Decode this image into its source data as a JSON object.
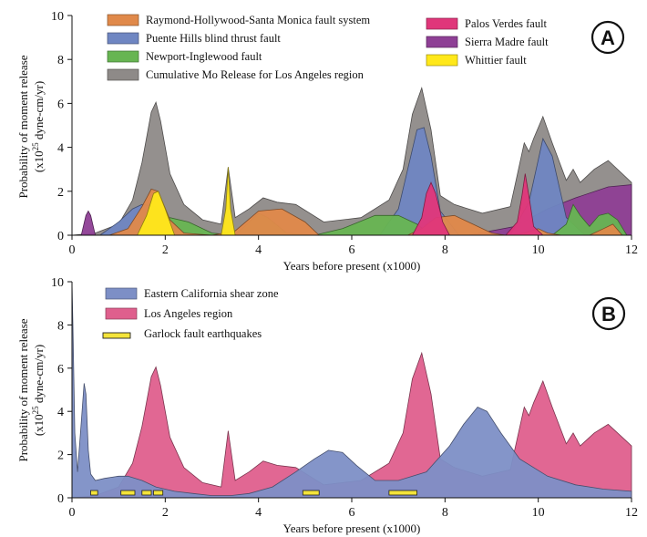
{
  "panels": {
    "A": {
      "letter": "A",
      "ylabel": {
        "line1": "Probability of moment release",
        "base": "(x10",
        "exp": "25",
        "rest": " dyne-cm/yr)"
      }
    },
    "B": {
      "letter": "B",
      "ylabel": {
        "line1": "Probability of moment release",
        "base": "(x10",
        "exp": "25",
        "rest": " dyne-cm/yr)"
      }
    }
  },
  "xlabel": "Years before present (x1000)",
  "chart_data": [
    {
      "type": "area",
      "panel": "A",
      "xlabel": "Years before present (x1000)",
      "xlim": [
        0,
        12
      ],
      "ylim": [
        0,
        10
      ],
      "xticks": [
        0,
        2,
        4,
        6,
        8,
        10,
        12
      ],
      "yticks": [
        0,
        2,
        4,
        6,
        8,
        10
      ],
      "legend": [
        {
          "label": "Raymond-Hollywood-Santa Monica fault system",
          "color": "#e0894a"
        },
        {
          "label": "Puente Hills blind thrust fault",
          "color": "#6f86c2"
        },
        {
          "label": "Newport-Inglewood fault",
          "color": "#67b552"
        },
        {
          "label": "Cumulative Mo Release for Los Angeles region",
          "color": "#8e8a88"
        },
        {
          "label": "Palos Verdes fault",
          "color": "#e0367a"
        },
        {
          "label": "Sierra Madre fault",
          "color": "#8e3f95"
        },
        {
          "label": "Whittier fault",
          "color": "#ffe81a"
        }
      ],
      "series": [
        {
          "name": "Cumulative Mo Release for Los Angeles region",
          "color": "#8e8a88",
          "x": [
            0,
            0.5,
            1.0,
            1.3,
            1.5,
            1.7,
            1.8,
            1.9,
            2.1,
            2.4,
            2.8,
            3.2,
            3.35,
            3.5,
            3.8,
            4.1,
            4.4,
            4.8,
            5.4,
            6.2,
            6.8,
            7.1,
            7.3,
            7.5,
            7.7,
            7.9,
            8.2,
            8.8,
            9.4,
            9.7,
            9.8,
            9.9,
            10.1,
            10.3,
            10.6,
            10.75,
            10.9,
            11.2,
            11.5,
            11.8,
            12
          ],
          "y": [
            0,
            0.1,
            0.5,
            1.6,
            3.3,
            5.6,
            6.05,
            5.2,
            2.8,
            1.4,
            0.7,
            0.5,
            3.1,
            0.8,
            1.2,
            1.7,
            1.5,
            1.4,
            0.6,
            0.8,
            1.6,
            3.0,
            5.5,
            6.7,
            4.8,
            1.8,
            1.4,
            1.0,
            1.3,
            4.2,
            3.8,
            4.4,
            5.4,
            4.2,
            2.5,
            3.0,
            2.4,
            3.0,
            3.4,
            2.8,
            2.4
          ]
        },
        {
          "name": "Sierra Madre fault",
          "color": "#8e3f95",
          "x": [
            0.2,
            0.3,
            0.35,
            0.4,
            0.5,
            8.5,
            9.5,
            10.2,
            10.8,
            11.5,
            12
          ],
          "y": [
            0,
            0.9,
            1.1,
            0.9,
            0,
            0,
            0.4,
            1.2,
            1.7,
            2.2,
            2.3
          ]
        },
        {
          "name": "Puente Hills blind thrust fault",
          "color": "#6f86c2",
          "x": [
            0.6,
            1.0,
            1.3,
            1.5,
            1.8,
            2.1,
            2.5,
            6.6,
            7.0,
            7.2,
            7.4,
            7.55,
            7.7,
            7.9,
            8.3,
            9.4,
            9.8,
            10.1,
            10.3,
            10.6,
            11.0
          ],
          "y": [
            0,
            0.6,
            1.2,
            1.4,
            1.3,
            0.6,
            0,
            0,
            1.2,
            3.0,
            4.8,
            4.9,
            3.6,
            1.1,
            0,
            0,
            1.5,
            4.4,
            3.6,
            0.8,
            0
          ]
        },
        {
          "name": "Newport-Inglewood fault",
          "color": "#67b552",
          "x": [
            1.8,
            2.1,
            2.5,
            3.0,
            3.5,
            3.8,
            4.0,
            4.2,
            4.6,
            5.2,
            5.8,
            6.5,
            7.0,
            7.4,
            7.7,
            10.3,
            10.6,
            10.75,
            10.9,
            11.1,
            11.3,
            11.5,
            11.7,
            11.9
          ],
          "y": [
            0.3,
            0.8,
            0.6,
            0.1,
            0,
            0.6,
            1.0,
            0.8,
            0.1,
            0,
            0.3,
            0.9,
            0.9,
            0.5,
            0,
            0,
            0.5,
            1.4,
            0.9,
            0.4,
            0.9,
            1.0,
            0.7,
            0
          ]
        },
        {
          "name": "Raymond-Hollywood-Santa Monica fault system",
          "color": "#e0894a",
          "x": [
            0.8,
            1.2,
            1.5,
            1.7,
            1.85,
            2.1,
            2.4,
            3.0,
            3.5,
            4.0,
            4.5,
            5.0,
            5.3,
            7.2,
            7.5,
            7.8,
            8.2,
            8.6,
            9.0,
            9.3,
            9.7,
            10.0,
            10.2,
            10.5,
            10.8,
            11.1,
            11.4,
            11.6,
            11.8
          ],
          "y": [
            0,
            0.3,
            1.3,
            2.1,
            2.0,
            0.7,
            0.1,
            0,
            0.2,
            1.1,
            1.2,
            0.6,
            0,
            0,
            0.3,
            0.8,
            0.9,
            0.5,
            0.1,
            0,
            0.1,
            0.3,
            0.1,
            0,
            0,
            0,
            0.3,
            0.5,
            0
          ]
        },
        {
          "name": "Whittier fault",
          "color": "#ffe81a",
          "x": [
            1.4,
            1.6,
            1.75,
            1.85,
            2.0,
            2.2,
            3.2,
            3.3,
            3.35,
            3.4,
            3.5
          ],
          "y": [
            0,
            0.9,
            1.9,
            2.0,
            1.2,
            0,
            0,
            1.2,
            3.1,
            1.2,
            0
          ]
        },
        {
          "name": "Palos Verdes fault",
          "color": "#e0367a",
          "x": [
            7.3,
            7.5,
            7.6,
            7.7,
            7.8,
            7.95,
            8.1,
            9.3,
            9.55,
            9.65,
            9.72,
            9.8,
            9.9,
            10.1
          ],
          "y": [
            0,
            0.8,
            1.9,
            2.4,
            1.9,
            0.6,
            0,
            0,
            0.6,
            1.8,
            2.8,
            1.8,
            0.4,
            0
          ]
        }
      ]
    },
    {
      "type": "area",
      "panel": "B",
      "xlabel": "Years before present (x1000)",
      "xlim": [
        0,
        12
      ],
      "ylim": [
        0,
        10
      ],
      "xticks": [
        0,
        2,
        4,
        6,
        8,
        10,
        12
      ],
      "yticks": [
        0,
        2,
        4,
        6,
        8,
        10
      ],
      "legend": [
        {
          "label": "Eastern California shear zone",
          "color": "#7d8fc6"
        },
        {
          "label": "Los Angeles region",
          "color": "#df5f8d"
        },
        {
          "label": "Garlock fault earthquakes",
          "color": "#f4e43a"
        }
      ],
      "series": [
        {
          "name": "Los Angeles region",
          "color": "#df5f8d",
          "x": [
            0,
            0.5,
            1.0,
            1.3,
            1.5,
            1.7,
            1.8,
            1.9,
            2.1,
            2.4,
            2.8,
            3.2,
            3.35,
            3.5,
            3.8,
            4.1,
            4.4,
            4.8,
            5.4,
            6.2,
            6.8,
            7.1,
            7.3,
            7.5,
            7.7,
            7.9,
            8.2,
            8.8,
            9.4,
            9.7,
            9.8,
            9.9,
            10.1,
            10.3,
            10.6,
            10.75,
            10.9,
            11.2,
            11.5,
            11.8,
            12
          ],
          "y": [
            0,
            0.1,
            0.5,
            1.6,
            3.3,
            5.6,
            6.05,
            5.2,
            2.8,
            1.4,
            0.7,
            0.5,
            3.1,
            0.8,
            1.2,
            1.7,
            1.5,
            1.4,
            0.6,
            0.8,
            1.6,
            3.0,
            5.5,
            6.7,
            4.8,
            1.8,
            1.4,
            1.0,
            1.3,
            4.2,
            3.8,
            4.4,
            5.4,
            4.2,
            2.5,
            3.0,
            2.4,
            3.0,
            3.4,
            2.8,
            2.4
          ]
        },
        {
          "name": "Eastern California shear zone",
          "color": "#7d8fc6",
          "x": [
            0,
            0.02,
            0.06,
            0.12,
            0.2,
            0.26,
            0.3,
            0.35,
            0.4,
            0.5,
            0.7,
            1.0,
            1.2,
            1.5,
            1.8,
            2.2,
            2.6,
            3.0,
            3.4,
            3.8,
            4.3,
            4.8,
            5.2,
            5.5,
            5.8,
            6.1,
            6.5,
            7.0,
            7.6,
            8.1,
            8.4,
            8.7,
            8.9,
            9.2,
            9.6,
            10.2,
            10.8,
            11.4,
            12
          ],
          "y": [
            10,
            8,
            3,
            1.2,
            3.5,
            5.3,
            4.8,
            2.2,
            1.1,
            0.8,
            0.9,
            1.0,
            1.0,
            0.8,
            0.5,
            0.3,
            0.2,
            0.1,
            0.1,
            0.2,
            0.5,
            1.2,
            1.8,
            2.2,
            2.1,
            1.5,
            0.8,
            0.8,
            1.2,
            2.4,
            3.4,
            4.2,
            4.0,
            3.0,
            1.8,
            1.0,
            0.6,
            0.4,
            0.3
          ]
        }
      ],
      "garlock_events": [
        [
          0.4,
          0.55
        ],
        [
          1.05,
          1.35
        ],
        [
          1.5,
          1.7
        ],
        [
          1.75,
          1.95
        ],
        [
          4.95,
          5.3
        ],
        [
          6.8,
          7.4
        ]
      ]
    }
  ]
}
